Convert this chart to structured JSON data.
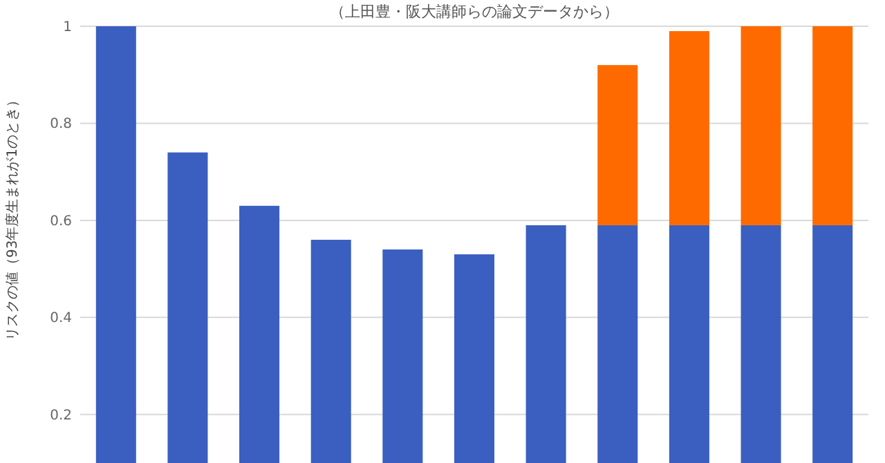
{
  "chart_data": {
    "type": "bar",
    "title": "（上田豊・阪大講師らの論文データから）",
    "ylabel": "リスクの値（93年度生まれが1のとき）",
    "categories": [
      null,
      null,
      null,
      null,
      null,
      null,
      null,
      null,
      null,
      null,
      null
    ],
    "stacked": true,
    "series": [
      {
        "color": "#3a5fc0",
        "values": [
          1.0,
          0.74,
          0.63,
          0.56,
          0.54,
          0.53,
          0.59,
          0.59,
          0.59,
          0.59,
          0.59
        ]
      },
      {
        "color": "#ff6a00",
        "values": [
          null,
          null,
          null,
          null,
          null,
          null,
          null,
          0.33,
          0.4,
          0.41,
          0.41
        ]
      }
    ],
    "ylim": [
      0.1,
      1.0
    ],
    "yticks": [
      0.2,
      0.4,
      0.6,
      0.8,
      1
    ],
    "grid": "y"
  }
}
